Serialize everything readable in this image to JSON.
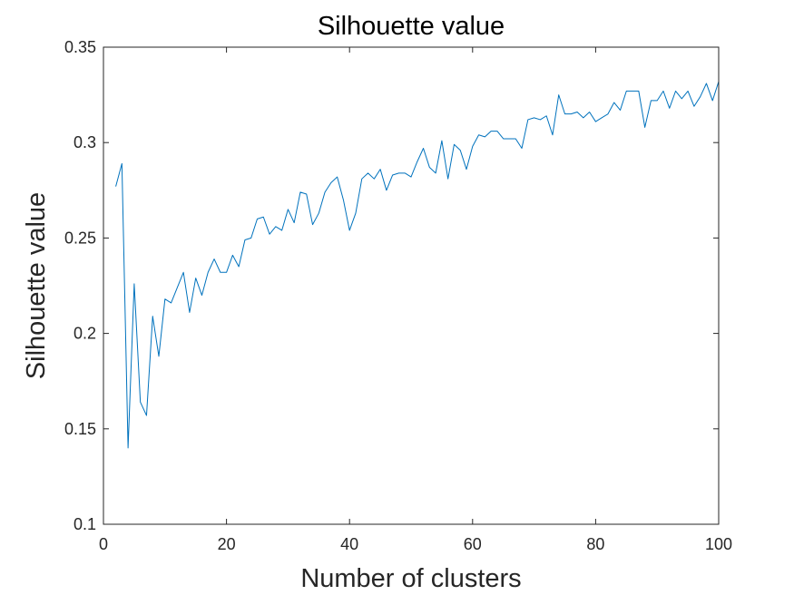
{
  "chart_data": {
    "type": "line",
    "title": "Silhouette value",
    "xlabel": "Number of clusters",
    "ylabel": "Silhouette value",
    "xlim": [
      0,
      100
    ],
    "ylim": [
      0.1,
      0.35
    ],
    "xticks": [
      0,
      20,
      40,
      60,
      80,
      100
    ],
    "yticks": [
      0.1,
      0.15,
      0.2,
      0.25,
      0.3,
      0.35
    ],
    "xtick_labels": [
      "0",
      "20",
      "40",
      "60",
      "80",
      "100"
    ],
    "ytick_labels": [
      "0.1",
      "0.15",
      "0.2",
      "0.25",
      "0.3",
      "0.35"
    ],
    "grid": false,
    "line_color": "#0072BD",
    "series": [
      {
        "x": [
          2,
          3,
          4,
          5,
          6,
          7,
          8,
          9,
          10,
          11,
          12,
          13,
          14,
          15,
          16,
          17,
          18,
          19,
          20,
          21,
          22,
          23,
          24,
          25,
          26,
          27,
          28,
          29,
          30,
          31,
          32,
          33,
          34,
          35,
          36,
          37,
          38,
          39,
          40,
          41,
          42,
          43,
          44,
          45,
          46,
          47,
          48,
          49,
          50,
          51,
          52,
          53,
          54,
          55,
          56,
          57,
          58,
          59,
          60,
          61,
          62,
          63,
          64,
          65,
          66,
          67,
          68,
          69,
          70,
          71,
          72,
          73,
          74,
          75,
          76,
          77,
          78,
          79,
          80,
          81,
          82,
          83,
          84,
          85,
          86,
          87,
          88,
          89,
          90,
          91,
          92,
          93,
          94,
          95,
          96,
          97,
          98,
          99,
          100
        ],
        "values": [
          0.277,
          0.289,
          0.14,
          0.226,
          0.164,
          0.157,
          0.209,
          0.188,
          0.218,
          0.216,
          0.224,
          0.232,
          0.211,
          0.229,
          0.22,
          0.232,
          0.239,
          0.232,
          0.232,
          0.241,
          0.235,
          0.249,
          0.25,
          0.26,
          0.261,
          0.252,
          0.256,
          0.254,
          0.265,
          0.258,
          0.274,
          0.273,
          0.257,
          0.263,
          0.274,
          0.279,
          0.282,
          0.27,
          0.254,
          0.263,
          0.281,
          0.284,
          0.281,
          0.286,
          0.275,
          0.283,
          0.284,
          0.284,
          0.282,
          0.29,
          0.297,
          0.287,
          0.284,
          0.301,
          0.281,
          0.299,
          0.296,
          0.286,
          0.298,
          0.304,
          0.303,
          0.306,
          0.306,
          0.302,
          0.302,
          0.302,
          0.297,
          0.312,
          0.313,
          0.312,
          0.314,
          0.304,
          0.325,
          0.315,
          0.315,
          0.316,
          0.313,
          0.316,
          0.311,
          0.313,
          0.315,
          0.321,
          0.317,
          0.327,
          0.327,
          0.327,
          0.308,
          0.322,
          0.322,
          0.327,
          0.318,
          0.327,
          0.323,
          0.327,
          0.319,
          0.324,
          0.331,
          0.322,
          0.332
        ]
      }
    ]
  }
}
